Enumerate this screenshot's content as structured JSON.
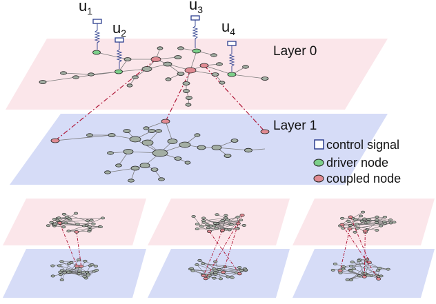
{
  "layers": {
    "layer0_label": "Layer 0",
    "layer1_label": "Layer 1"
  },
  "control_inputs": [
    {
      "letter": "u",
      "index": "1"
    },
    {
      "letter": "u",
      "index": "2"
    },
    {
      "letter": "u",
      "index": "3"
    },
    {
      "letter": "u",
      "index": "4"
    }
  ],
  "legend": {
    "control_signal": "control signal",
    "driver_node": "driver node",
    "coupled_node": "coupled node"
  },
  "colors": {
    "layer0_fill": "#fbe6ea",
    "layer1_fill": "#d6dcf7",
    "node_fill": "#a3aea3",
    "driver_fill": "#7ccf8a",
    "coupled_fill": "#e08a92",
    "interlink": "#b01a3a",
    "control_square": "#2d3f8f"
  },
  "icons": [
    "control-signal-square-icon",
    "driver-node-ellipse-icon",
    "coupled-node-ellipse-icon"
  ]
}
